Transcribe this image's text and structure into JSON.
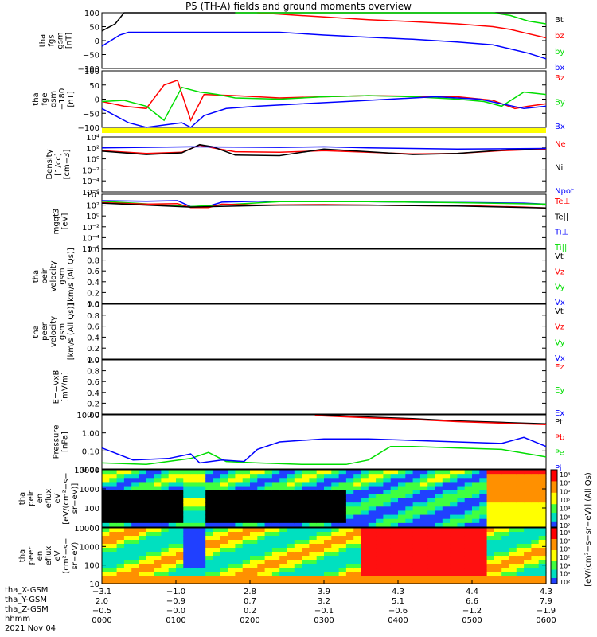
{
  "title": "P5 (TH-A) fields and ground moments overview",
  "colors": {
    "black": "#000000",
    "red": "#ff0000",
    "green": "#00dd00",
    "blue": "#0000ff",
    "yellow": "#ffff00"
  },
  "chart_data": [
    {
      "type": "line",
      "ylabel": [
        "tha",
        "fgs",
        "gsm",
        "[nT]"
      ],
      "yticks": [
        "100",
        "50",
        "0",
        "−50",
        "−100"
      ],
      "ylim": [
        -100,
        100
      ],
      "legend": [
        {
          "name": "Bt",
          "color": "black"
        },
        {
          "name": "bz",
          "color": "red"
        },
        {
          "name": "by",
          "color": "green"
        },
        {
          "name": "bx",
          "color": "blue"
        }
      ],
      "series": [
        {
          "name": "Bt",
          "color": "black",
          "x": [
            0.0,
            0.03,
            0.05,
            0.12,
            0.16,
            0.3,
            0.4,
            0.5,
            0.6,
            0.7,
            0.8,
            0.9,
            1.0
          ],
          "y": [
            35,
            60,
            100,
            100,
            100,
            100,
            100,
            100,
            100,
            100,
            100,
            100,
            100
          ]
        },
        {
          "name": "bz",
          "color": "red",
          "x": [
            0.35,
            0.4,
            0.5,
            0.6,
            0.7,
            0.8,
            0.88,
            0.92,
            0.96,
            1.0
          ],
          "y": [
            100,
            95,
            85,
            75,
            68,
            60,
            50,
            40,
            25,
            10
          ]
        },
        {
          "name": "by",
          "color": "green",
          "x": [
            0.3,
            0.4,
            0.5,
            0.6,
            0.7,
            0.8,
            0.88,
            0.92,
            0.96,
            1.0
          ],
          "y": [
            100,
            100,
            100,
            100,
            100,
            100,
            100,
            90,
            70,
            60
          ]
        },
        {
          "name": "bx",
          "color": "blue",
          "x": [
            0.0,
            0.02,
            0.04,
            0.06,
            0.4,
            0.5,
            0.6,
            0.7,
            0.8,
            0.88,
            0.92,
            0.96,
            1.0
          ],
          "y": [
            -20,
            0,
            20,
            30,
            30,
            20,
            12,
            5,
            -5,
            -15,
            -30,
            -45,
            -65
          ]
        }
      ]
    },
    {
      "type": "line",
      "ylabel": [
        "tha",
        "fge",
        "gsm",
        "−180",
        "[nT]"
      ],
      "yticks": [
        "100",
        "50",
        "0",
        "−50",
        "−100"
      ],
      "ylim": [
        -120,
        120
      ],
      "legend": [
        {
          "name": "Bz",
          "color": "red"
        },
        {
          "name": "By",
          "color": "green"
        },
        {
          "name": "Bx",
          "color": "blue"
        }
      ],
      "series": [
        {
          "name": "Bz",
          "color": "red",
          "x": [
            0.0,
            0.05,
            0.1,
            0.14,
            0.17,
            0.2,
            0.23,
            0.3,
            0.4,
            0.5,
            0.6,
            0.7,
            0.8,
            0.88,
            0.93,
            0.96,
            1.0
          ],
          "y": [
            -10,
            -30,
            -40,
            60,
            80,
            -90,
            20,
            15,
            5,
            10,
            15,
            12,
            10,
            -5,
            -40,
            -30,
            -20
          ]
        },
        {
          "name": "By",
          "color": "green",
          "x": [
            0.0,
            0.05,
            0.1,
            0.14,
            0.18,
            0.2,
            0.22,
            0.26,
            0.3,
            0.4,
            0.5,
            0.6,
            0.7,
            0.8,
            0.86,
            0.9,
            0.95,
            1.0
          ],
          "y": [
            -10,
            -5,
            -30,
            -90,
            50,
            40,
            30,
            20,
            5,
            0,
            10,
            15,
            10,
            0,
            -10,
            -30,
            30,
            20
          ]
        },
        {
          "name": "Bx",
          "color": "blue",
          "x": [
            0.0,
            0.06,
            0.1,
            0.14,
            0.18,
            0.2,
            0.23,
            0.28,
            0.35,
            0.45,
            0.55,
            0.65,
            0.75,
            0.85,
            0.9,
            0.95,
            1.0
          ],
          "y": [
            -40,
            -100,
            -120,
            -110,
            -100,
            -120,
            -70,
            -40,
            -30,
            -20,
            -10,
            0,
            10,
            0,
            -20,
            -40,
            -30
          ]
        }
      ]
    },
    {
      "type": "line",
      "ylabel": [
        "Density",
        "[1/cc]",
        "[cm−3]"
      ],
      "yticks": [
        "10⁴",
        "10²",
        "10⁰",
        "10⁻²",
        "10⁻⁴",
        "10⁻⁶"
      ],
      "ylim": [
        -6,
        4
      ],
      "yscale": "log",
      "legend": [
        {
          "name": "Ne",
          "color": "red"
        },
        {
          "name": "Ni",
          "color": "black"
        },
        {
          "name": "Npot",
          "color": "blue"
        }
      ],
      "series": [
        {
          "name": "Ne",
          "color": "red",
          "x": [
            0.0,
            0.1,
            0.18,
            0.22,
            0.25,
            0.3,
            0.4,
            0.5,
            0.6,
            0.7,
            0.8,
            0.9,
            1.0
          ],
          "y": [
            1.5,
            1.0,
            1.2,
            2.5,
            2.0,
            1.3,
            1.2,
            1.5,
            1.2,
            0.9,
            1.0,
            1.5,
            1.8
          ]
        },
        {
          "name": "Ni",
          "color": "black",
          "x": [
            0.0,
            0.1,
            0.18,
            0.22,
            0.25,
            0.3,
            0.4,
            0.5,
            0.6,
            0.7,
            0.8,
            0.9,
            1.0
          ],
          "y": [
            1.4,
            0.8,
            1.1,
            2.6,
            2.2,
            0.7,
            0.6,
            1.8,
            1.3,
            0.8,
            1.0,
            1.6,
            1.9
          ]
        },
        {
          "name": "Npot",
          "color": "blue",
          "x": [
            0.0,
            0.2,
            0.4,
            0.5,
            0.6,
            0.8,
            1.0
          ],
          "y": [
            2.0,
            2.2,
            2.1,
            2.2,
            2.0,
            1.8,
            1.9
          ]
        }
      ]
    },
    {
      "type": "line",
      "ylabel": [
        "mgqt3",
        "[eV]"
      ],
      "yticks": [
        "10⁴",
        "10²",
        "10⁰",
        "10⁻²",
        "10⁻⁴",
        "10⁻⁶"
      ],
      "ylim": [
        -6,
        5
      ],
      "yscale": "log",
      "legend": [
        {
          "name": "Te⊥",
          "color": "red"
        },
        {
          "name": "Te||",
          "color": "black"
        },
        {
          "name": "Ti⊥",
          "color": "blue"
        },
        {
          "name": "Ti||",
          "color": "green"
        }
      ],
      "series": [
        {
          "name": "Ti",
          "color": "blue",
          "x": [
            0.0,
            0.1,
            0.17,
            0.2,
            0.24,
            0.27,
            0.35,
            0.5,
            0.6,
            0.7,
            0.85,
            0.95,
            1.0
          ],
          "y": [
            3.7,
            3.6,
            3.7,
            2.5,
            2.6,
            3.4,
            3.6,
            3.6,
            3.5,
            3.4,
            3.3,
            3.2,
            3.0
          ]
        },
        {
          "name": "Ti||",
          "color": "green",
          "x": [
            0.0,
            0.2,
            0.4,
            0.6,
            0.8,
            1.0
          ],
          "y": [
            3.6,
            2.5,
            3.5,
            3.5,
            3.3,
            3.0
          ]
        },
        {
          "name": "Te",
          "color": "red",
          "x": [
            0.0,
            0.1,
            0.17,
            0.2,
            0.24,
            0.27,
            0.35,
            0.5,
            0.6,
            0.7,
            0.85,
            0.95,
            1.0
          ],
          "y": [
            3.3,
            3.0,
            3.1,
            2.3,
            2.3,
            3.0,
            2.8,
            2.9,
            2.8,
            2.7,
            2.6,
            2.4,
            2.2
          ]
        },
        {
          "name": "Te||",
          "color": "black",
          "x": [
            0.0,
            0.2,
            0.4,
            0.6,
            0.8,
            1.0
          ],
          "y": [
            3.2,
            2.4,
            2.8,
            2.8,
            2.6,
            2.2
          ]
        }
      ]
    },
    {
      "type": "line",
      "ylabel": [
        "tha",
        "peir",
        "velocity",
        "gsm",
        "[km/s (All Qs)]"
      ],
      "yticks": [
        "1.0",
        "0.8",
        "0.6",
        "0.4",
        "0.2",
        "0.0"
      ],
      "ylim": [
        0,
        1
      ],
      "legend": [
        {
          "name": "Vt",
          "color": "black"
        },
        {
          "name": "Vz",
          "color": "red"
        },
        {
          "name": "Vy",
          "color": "green"
        },
        {
          "name": "Vx",
          "color": "blue"
        }
      ],
      "series": []
    },
    {
      "type": "line",
      "ylabel": [
        "tha",
        "peer",
        "velocity",
        "gsm",
        "[km/s (All Qs)]"
      ],
      "yticks": [
        "1.0",
        "0.8",
        "0.6",
        "0.4",
        "0.2",
        "0.0"
      ],
      "ylim": [
        0,
        1
      ],
      "legend": [
        {
          "name": "Vt",
          "color": "black"
        },
        {
          "name": "Vz",
          "color": "red"
        },
        {
          "name": "Vy",
          "color": "green"
        },
        {
          "name": "Vx",
          "color": "blue"
        }
      ],
      "series": []
    },
    {
      "type": "line",
      "ylabel": [
        "E=−VxB",
        "[mV/m]"
      ],
      "yticks": [
        "1.0",
        "0.8",
        "0.6",
        "0.4",
        "0.2",
        "0.0"
      ],
      "ylim": [
        0,
        1
      ],
      "legend": [
        {
          "name": "Ez",
          "color": "red"
        },
        {
          "name": "Ey",
          "color": "green"
        },
        {
          "name": "Ex",
          "color": "blue"
        }
      ],
      "series": []
    },
    {
      "type": "line",
      "ylabel": [
        "Pressure",
        "[nPa]"
      ],
      "yticks": [
        "10.00",
        "1.00",
        "0.10",
        "0.01"
      ],
      "ylim": [
        -2.3,
        1.3
      ],
      "yscale": "log",
      "legend": [
        {
          "name": "Pt",
          "color": "black"
        },
        {
          "name": "Pb",
          "color": "red"
        },
        {
          "name": "Pe",
          "color": "green"
        },
        {
          "name": "Pi",
          "color": "blue"
        }
      ],
      "series": [
        {
          "name": "Pt",
          "color": "black",
          "x": [
            0.48,
            0.6,
            0.7,
            0.8,
            0.9,
            1.0
          ],
          "y": [
            1.3,
            1.15,
            1.05,
            0.9,
            0.8,
            0.7
          ]
        },
        {
          "name": "Pb",
          "color": "red",
          "x": [
            0.48,
            0.6,
            0.7,
            0.8,
            0.9,
            1.0
          ],
          "y": [
            1.25,
            1.1,
            1.0,
            0.85,
            0.75,
            0.65
          ]
        },
        {
          "name": "Pe",
          "color": "green",
          "x": [
            0.0,
            0.1,
            0.2,
            0.24,
            0.28,
            0.35,
            0.45,
            0.55,
            0.6,
            0.65,
            0.7,
            0.8,
            0.9,
            1.0
          ],
          "y": [
            -1.9,
            -2.0,
            -1.6,
            -1.2,
            -1.8,
            -1.9,
            -2.0,
            -2.0,
            -1.7,
            -0.8,
            -0.8,
            -0.9,
            -1.0,
            -1.5
          ]
        },
        {
          "name": "Pi",
          "color": "blue",
          "x": [
            0.0,
            0.07,
            0.15,
            0.2,
            0.22,
            0.27,
            0.32,
            0.35,
            0.4,
            0.5,
            0.6,
            0.7,
            0.8,
            0.9,
            0.95,
            1.0
          ],
          "y": [
            -0.9,
            -1.7,
            -1.6,
            -1.3,
            -1.9,
            -1.7,
            -1.8,
            -1.0,
            -0.5,
            -0.3,
            -0.3,
            -0.4,
            -0.5,
            -0.6,
            -0.2,
            -0.8
          ]
        }
      ]
    },
    {
      "type": "heatmap",
      "ylabel": [
        "tha",
        "peir",
        "en",
        "eflux",
        "eV",
        "[eV/(cm²−s−",
        "sr−eV)]"
      ],
      "yticks": [
        "10000",
        "1000",
        "100",
        "10"
      ],
      "ylim": [
        10,
        20000
      ],
      "yscale": "log"
    },
    {
      "type": "heatmap",
      "ylabel": [
        "tha",
        "peer",
        "en",
        "eflux",
        "eV",
        "(cm²−s−",
        "sr−eV)"
      ],
      "yticks": [
        "10000",
        "1000",
        "100",
        "10"
      ],
      "ylim": [
        10,
        20000
      ],
      "yscale": "log"
    }
  ],
  "colorbar": {
    "label": "[eV/(cm²−s−sr−eV)] (All Qs)",
    "ticks1": [
      "10⁸",
      "10⁷",
      "10⁶",
      "10⁵",
      "10⁴",
      "10³",
      "10²"
    ],
    "ticks2": [
      "10⁸",
      "10⁷",
      "10⁶",
      "10⁵",
      "10⁴",
      "10³",
      "10²"
    ]
  },
  "xaxis": {
    "rows": [
      {
        "label": "tha_X-GSM",
        "values": [
          "−3.1",
          "−1.0",
          "2.8",
          "3.9",
          "4.3",
          "4.4",
          "4.3"
        ]
      },
      {
        "label": "tha_Y-GSM",
        "values": [
          "2.0",
          "−0.9",
          "0.7",
          "3.2",
          "5.1",
          "6.6",
          "7.9"
        ]
      },
      {
        "label": "tha_Z-GSM",
        "values": [
          "−0.5",
          "−0.0",
          "0.2",
          "−0.1",
          "−0.6",
          "−1.2",
          "−1.9"
        ]
      },
      {
        "label": "hhmm",
        "values": [
          "0000",
          "0100",
          "0200",
          "0300",
          "0400",
          "0500",
          "0600"
        ]
      }
    ],
    "date": "2021 Nov 04"
  }
}
